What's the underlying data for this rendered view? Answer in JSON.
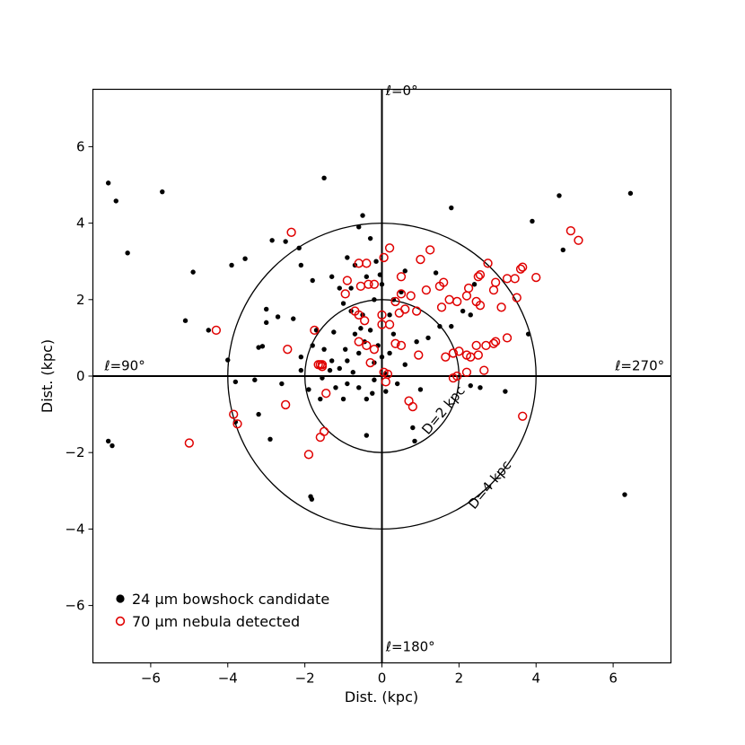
{
  "chart_data": {
    "type": "scatter",
    "xlabel": "Dist. (kpc)",
    "ylabel": "Dist. (kpc)",
    "xlim": [
      -7.5,
      7.5
    ],
    "ylim": [
      -7.5,
      7.5
    ],
    "xticks": [
      -6,
      -4,
      -2,
      0,
      2,
      4,
      6
    ],
    "yticks": [
      -6,
      -4,
      -2,
      0,
      2,
      4,
      6
    ],
    "tick_labels_x": [
      "−6",
      "−4",
      "−2",
      "0",
      "2",
      "4",
      "6"
    ],
    "tick_labels_y": [
      "−6",
      "−4",
      "−2",
      "0",
      "2",
      "4",
      "6"
    ],
    "grid": false,
    "legend_position": "lower-left",
    "annotations": [
      {
        "text": "ℓ=0°",
        "x": 0.1,
        "y": 7.35
      },
      {
        "text": "ℓ=90°",
        "x": -7.2,
        "y": 0.15
      },
      {
        "text": "ℓ=270°",
        "x": 6.05,
        "y": 0.15
      },
      {
        "text": "ℓ=180°",
        "x": 0.1,
        "y": -7.2
      },
      {
        "text": "D=2 kpc",
        "x": 1.2,
        "y": -1.55,
        "rotation": -50
      },
      {
        "text": "D=4 kpc",
        "x": 2.4,
        "y": -3.5,
        "rotation": -50
      }
    ],
    "circles": [
      {
        "label": "D=2 kpc",
        "radius": 2
      },
      {
        "label": "D=4 kpc",
        "radius": 4
      }
    ],
    "series": [
      {
        "name": "24 μm bowshock candidate",
        "marker": "filled-circle",
        "color": "#000000",
        "points": [
          [
            -7.1,
            5.05
          ],
          [
            -6.9,
            4.58
          ],
          [
            -6.6,
            3.22
          ],
          [
            -5.7,
            4.82
          ],
          [
            -4.9,
            2.72
          ],
          [
            -5.1,
            1.45
          ],
          [
            -4.5,
            1.2
          ],
          [
            -3.9,
            2.9
          ],
          [
            -4.0,
            0.42
          ],
          [
            -3.8,
            -0.15
          ],
          [
            -3.8,
            -1.2
          ],
          [
            -3.2,
            -1.0
          ],
          [
            -2.9,
            -1.65
          ],
          [
            -7.1,
            -1.7
          ],
          [
            -7.0,
            -1.82
          ],
          [
            -1.5,
            5.18
          ],
          [
            -2.15,
            3.35
          ],
          [
            -2.5,
            3.52
          ],
          [
            -2.1,
            2.9
          ],
          [
            -1.8,
            2.5
          ],
          [
            -1.3,
            2.6
          ],
          [
            -1.1,
            2.3
          ],
          [
            -0.8,
            2.3
          ],
          [
            -0.7,
            2.9
          ],
          [
            -0.9,
            3.1
          ],
          [
            -0.5,
            4.2
          ],
          [
            -0.6,
            3.9
          ],
          [
            -0.3,
            3.6
          ],
          [
            0.3,
            2.0
          ],
          [
            0.5,
            2.2
          ],
          [
            0.0,
            2.4
          ],
          [
            -0.2,
            2.0
          ],
          [
            -0.5,
            1.6
          ],
          [
            -0.3,
            1.2
          ],
          [
            -0.1,
            0.8
          ],
          [
            0.2,
            0.6
          ],
          [
            -0.6,
            0.6
          ],
          [
            -0.9,
            0.4
          ],
          [
            -1.1,
            0.2
          ],
          [
            -1.3,
            0.4
          ],
          [
            -1.5,
            0.7
          ],
          [
            -1.8,
            0.8
          ],
          [
            -2.1,
            0.5
          ],
          [
            -2.7,
            1.55
          ],
          [
            -3.0,
            1.4
          ],
          [
            -3.0,
            1.75
          ],
          [
            -2.3,
            1.5
          ],
          [
            -1.7,
            1.2
          ],
          [
            -1.35,
            0.15
          ],
          [
            -1.2,
            -0.3
          ],
          [
            -0.9,
            -0.2
          ],
          [
            -0.6,
            -0.3
          ],
          [
            -0.4,
            -0.6
          ],
          [
            -0.2,
            -0.1
          ],
          [
            0.1,
            -0.4
          ],
          [
            0.4,
            -0.2
          ],
          [
            -1.0,
            -0.6
          ],
          [
            -1.6,
            -0.6
          ],
          [
            -1.85,
            -3.15
          ],
          [
            -1.82,
            -3.22
          ],
          [
            -0.4,
            -1.55
          ],
          [
            0.8,
            -1.35
          ],
          [
            0.85,
            -1.7
          ],
          [
            1.2,
            1.0
          ],
          [
            1.5,
            1.3
          ],
          [
            1.8,
            1.3
          ],
          [
            1.8,
            4.4
          ],
          [
            2.4,
            2.4
          ],
          [
            2.3,
            1.6
          ],
          [
            2.1,
            1.7
          ],
          [
            2.55,
            -0.3
          ],
          [
            2.3,
            -0.25
          ],
          [
            3.2,
            -0.4
          ],
          [
            3.8,
            1.1
          ],
          [
            3.9,
            4.05
          ],
          [
            4.6,
            4.72
          ],
          [
            6.45,
            4.78
          ],
          [
            6.3,
            -3.1
          ],
          [
            4.7,
            3.3
          ],
          [
            -3.3,
            -0.1
          ],
          [
            -0.8,
            1.7
          ],
          [
            -0.4,
            2.6
          ],
          [
            0.6,
            0.3
          ],
          [
            0.9,
            0.9
          ],
          [
            -2.6,
            -0.2
          ],
          [
            -0.2,
            0.35
          ],
          [
            0.3,
            1.1
          ],
          [
            -0.7,
            1.1
          ],
          [
            -1.0,
            1.9
          ],
          [
            -3.2,
            0.75
          ],
          [
            -3.1,
            0.78
          ],
          [
            -1.25,
            1.15
          ],
          [
            -0.95,
            0.7
          ],
          [
            -0.15,
            3.0
          ],
          [
            0.1,
            0.05
          ],
          [
            -0.45,
            0.9
          ],
          [
            -0.25,
            -0.45
          ],
          [
            0.0,
            0.5
          ],
          [
            1.0,
            -0.35
          ],
          [
            1.4,
            2.7
          ],
          [
            -2.1,
            0.15
          ],
          [
            -3.55,
            3.07
          ],
          [
            -2.85,
            3.55
          ],
          [
            -0.05,
            2.65
          ],
          [
            0.6,
            2.75
          ],
          [
            -0.55,
            1.25
          ],
          [
            -1.9,
            -0.35
          ],
          [
            0.2,
            1.6
          ],
          [
            -0.75,
            0.1
          ],
          [
            -1.55,
            -0.05
          ]
        ]
      },
      {
        "name": "70 μm nebula detected",
        "marker": "open-circle",
        "color": "#e00000",
        "points": [
          [
            -2.35,
            3.76
          ],
          [
            -2.45,
            0.7
          ],
          [
            -2.5,
            -0.75
          ],
          [
            -1.75,
            1.2
          ],
          [
            -1.65,
            0.3
          ],
          [
            -1.55,
            0.3
          ],
          [
            -1.6,
            -1.6
          ],
          [
            -1.5,
            -1.45
          ],
          [
            -1.45,
            -0.45
          ],
          [
            -1.9,
            -2.05
          ],
          [
            -3.85,
            -1.0
          ],
          [
            -3.75,
            -1.25
          ],
          [
            -5.0,
            -1.75
          ],
          [
            -4.3,
            1.2
          ],
          [
            -0.9,
            2.5
          ],
          [
            -0.95,
            2.15
          ],
          [
            -0.6,
            2.95
          ],
          [
            -0.4,
            2.95
          ],
          [
            -0.55,
            2.35
          ],
          [
            -0.35,
            2.4
          ],
          [
            -0.2,
            2.4
          ],
          [
            -0.6,
            1.6
          ],
          [
            -0.45,
            1.45
          ],
          [
            -0.7,
            1.7
          ],
          [
            -0.4,
            0.8
          ],
          [
            -0.2,
            0.7
          ],
          [
            -0.6,
            0.9
          ],
          [
            -0.3,
            0.35
          ],
          [
            0.0,
            1.6
          ],
          [
            0.0,
            1.35
          ],
          [
            0.2,
            1.35
          ],
          [
            0.35,
            1.95
          ],
          [
            0.45,
            1.65
          ],
          [
            0.6,
            1.75
          ],
          [
            0.5,
            2.15
          ],
          [
            0.75,
            2.1
          ],
          [
            0.9,
            1.7
          ],
          [
            0.5,
            2.6
          ],
          [
            0.35,
            0.85
          ],
          [
            0.5,
            0.8
          ],
          [
            0.7,
            -0.65
          ],
          [
            0.8,
            -0.8
          ],
          [
            0.95,
            0.55
          ],
          [
            0.05,
            3.1
          ],
          [
            0.2,
            3.35
          ],
          [
            1.0,
            3.05
          ],
          [
            1.25,
            3.3
          ],
          [
            1.15,
            2.25
          ],
          [
            1.5,
            2.35
          ],
          [
            1.6,
            2.45
          ],
          [
            1.55,
            1.8
          ],
          [
            1.75,
            2.0
          ],
          [
            1.65,
            0.5
          ],
          [
            1.85,
            0.6
          ],
          [
            2.0,
            0.65
          ],
          [
            1.95,
            1.95
          ],
          [
            2.2,
            2.1
          ],
          [
            2.25,
            2.3
          ],
          [
            2.45,
            1.95
          ],
          [
            2.55,
            1.85
          ],
          [
            2.5,
            2.6
          ],
          [
            2.55,
            2.65
          ],
          [
            2.75,
            2.95
          ],
          [
            2.45,
            0.8
          ],
          [
            2.7,
            0.8
          ],
          [
            2.5,
            0.55
          ],
          [
            2.9,
            0.85
          ],
          [
            2.95,
            0.9
          ],
          [
            2.65,
            0.15
          ],
          [
            2.2,
            0.1
          ],
          [
            1.85,
            -0.05
          ],
          [
            1.95,
            0.0
          ],
          [
            2.2,
            0.55
          ],
          [
            2.3,
            0.5
          ],
          [
            2.9,
            2.25
          ],
          [
            2.95,
            2.45
          ],
          [
            3.1,
            1.8
          ],
          [
            3.25,
            2.55
          ],
          [
            3.45,
            2.55
          ],
          [
            3.5,
            2.05
          ],
          [
            3.25,
            1.0
          ],
          [
            3.6,
            2.8
          ],
          [
            3.65,
            2.85
          ],
          [
            3.65,
            -1.05
          ],
          [
            4.0,
            2.58
          ],
          [
            4.9,
            3.8
          ],
          [
            5.1,
            3.55
          ],
          [
            0.05,
            0.1
          ],
          [
            0.1,
            -0.15
          ],
          [
            0.15,
            0.05
          ],
          [
            -1.55,
            0.25
          ],
          [
            -1.6,
            0.3
          ]
        ]
      }
    ]
  },
  "legend": {
    "items": [
      {
        "label": "24 μm bowshock candidate"
      },
      {
        "label": "70 μm nebula detected"
      }
    ]
  },
  "colors": {
    "frame": "#000000",
    "detected": "#e00000",
    "candidate": "#000000"
  }
}
